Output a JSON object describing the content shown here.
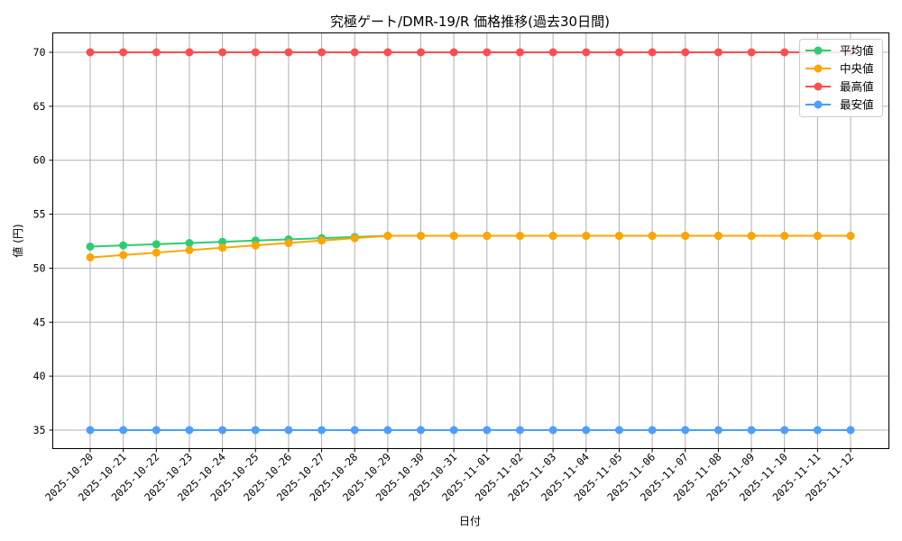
{
  "chart_data": {
    "type": "line",
    "title": "究極ゲート/DMR-19/R 価格推移(過去30日間)",
    "xlabel": "日付",
    "ylabel": "値 (円)",
    "ylim": [
      33.2,
      71.8
    ],
    "yticks": [
      35,
      40,
      45,
      50,
      55,
      60,
      65,
      70
    ],
    "grid": true,
    "legend_position": "upper right",
    "categories": [
      "2025-10-20",
      "2025-10-21",
      "2025-10-22",
      "2025-10-23",
      "2025-10-24",
      "2025-10-25",
      "2025-10-26",
      "2025-10-27",
      "2025-10-28",
      "2025-10-29",
      "2025-10-30",
      "2025-10-31",
      "2025-11-01",
      "2025-11-02",
      "2025-11-03",
      "2025-11-04",
      "2025-11-05",
      "2025-11-06",
      "2025-11-07",
      "2025-11-08",
      "2025-11-09",
      "2025-11-10",
      "2025-11-11",
      "2025-11-12"
    ],
    "series": [
      {
        "name": "平均値",
        "color": "#2ecc71",
        "values": [
          52.0,
          52.11,
          52.22,
          52.33,
          52.44,
          52.56,
          52.67,
          52.78,
          52.89,
          53.0,
          53.0,
          53.0,
          53.0,
          53.0,
          53.0,
          53.0,
          53.0,
          53.0,
          53.0,
          53.0,
          53.0,
          53.0,
          53.0,
          53.0
        ]
      },
      {
        "name": "中央値",
        "color": "#ffa500",
        "values": [
          51.0,
          51.22,
          51.44,
          51.67,
          51.89,
          52.11,
          52.33,
          52.56,
          52.78,
          53.0,
          53.0,
          53.0,
          53.0,
          53.0,
          53.0,
          53.0,
          53.0,
          53.0,
          53.0,
          53.0,
          53.0,
          53.0,
          53.0,
          53.0
        ]
      },
      {
        "name": "最高値",
        "color": "#ff4d4d",
        "values": [
          70,
          70,
          70,
          70,
          70,
          70,
          70,
          70,
          70,
          70,
          70,
          70,
          70,
          70,
          70,
          70,
          70,
          70,
          70,
          70,
          70,
          70,
          70,
          70
        ]
      },
      {
        "name": "最安値",
        "color": "#4d9eff",
        "values": [
          35,
          35,
          35,
          35,
          35,
          35,
          35,
          35,
          35,
          35,
          35,
          35,
          35,
          35,
          35,
          35,
          35,
          35,
          35,
          35,
          35,
          35,
          35,
          35
        ]
      }
    ]
  }
}
